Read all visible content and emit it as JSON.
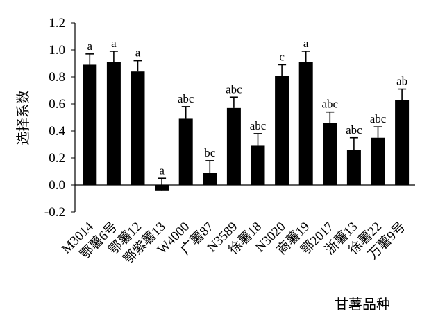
{
  "chart_data": {
    "type": "bar",
    "xlabel": "甘薯品种",
    "ylabel": "选择系数",
    "ylim": [
      -0.2,
      1.2
    ],
    "yticks": [
      "1.2",
      "1.0",
      "0.8",
      "0.6",
      "0.4",
      "0.2",
      "0.0",
      "-0.2"
    ],
    "ytick_values": [
      1.2,
      1.0,
      0.8,
      0.6,
      0.4,
      0.2,
      0.0,
      -0.2
    ],
    "categories": [
      "M3014",
      "鄂薯6号",
      "鄂薯12",
      "鄂紫薯13",
      "W4000",
      "广薯87",
      "N3589",
      "徐薯18",
      "N3020",
      "商薯19",
      "鄂2017",
      "浙薯13",
      "徐薯22",
      "万薯9号"
    ],
    "values": [
      0.89,
      0.91,
      0.84,
      -0.04,
      0.49,
      0.09,
      0.57,
      0.29,
      0.81,
      0.91,
      0.46,
      0.26,
      0.35,
      0.63
    ],
    "errors": [
      0.08,
      0.08,
      0.08,
      0.09,
      0.09,
      0.09,
      0.08,
      0.09,
      0.08,
      0.08,
      0.08,
      0.09,
      0.08,
      0.08
    ],
    "significance": [
      "a",
      "a",
      "a",
      "a",
      "abc",
      "bc",
      "abc",
      "abc",
      "c",
      "a",
      "abc",
      "abc",
      "abc",
      "ab"
    ],
    "grid": false,
    "legend": "none"
  }
}
